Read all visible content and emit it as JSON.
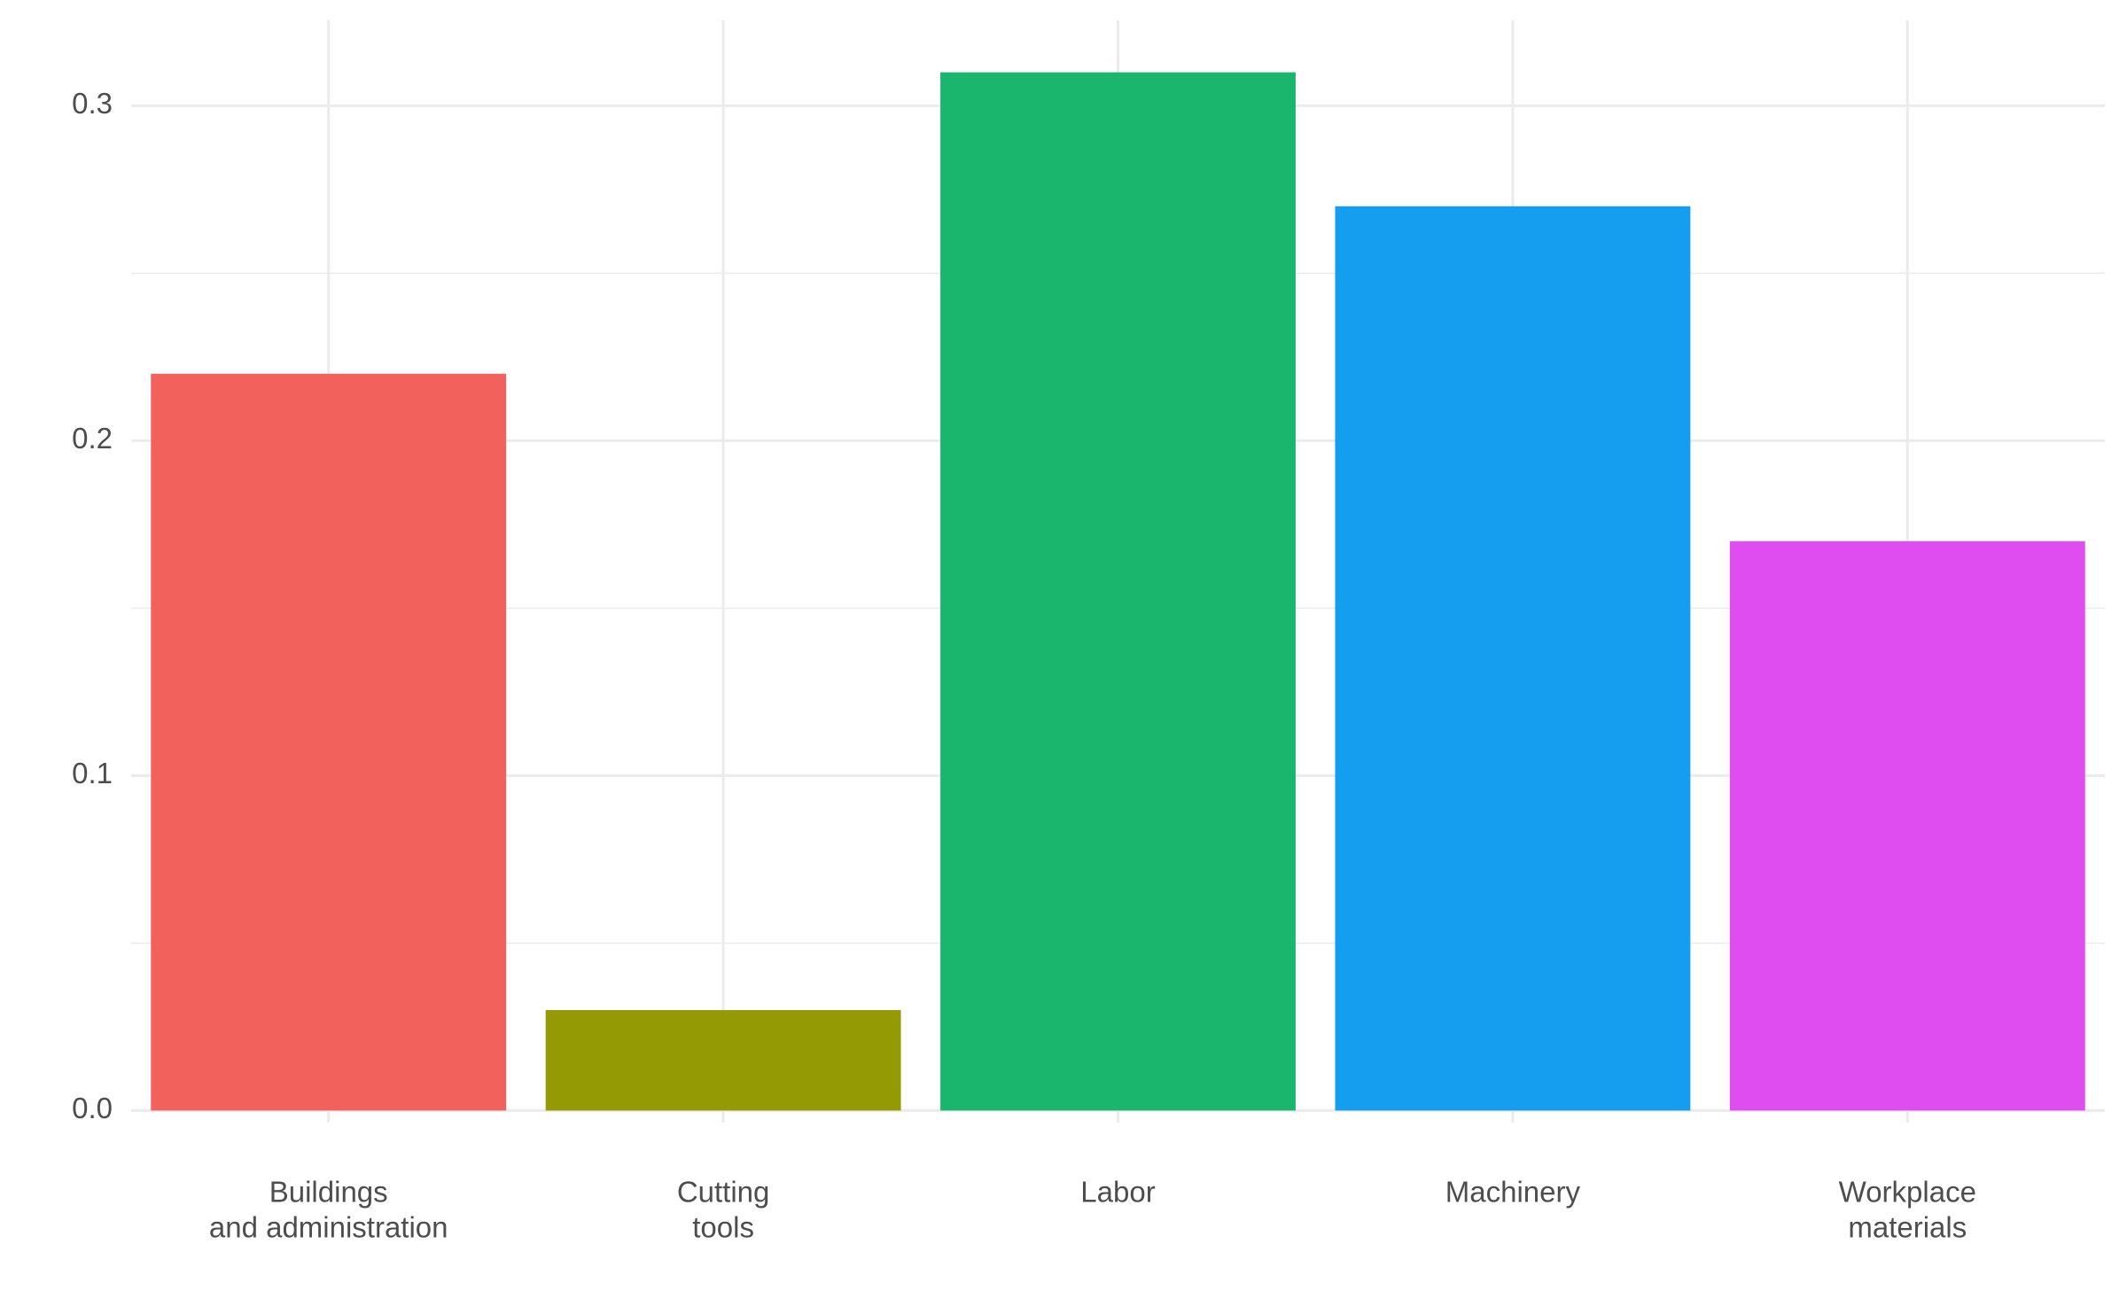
{
  "chart_data": {
    "type": "bar",
    "categories": [
      [
        "Buildings",
        "and administration"
      ],
      [
        "Cutting",
        "tools"
      ],
      [
        "Labor"
      ],
      [
        "Machinery"
      ],
      [
        "Workplace",
        "materials"
      ]
    ],
    "values": [
      0.22,
      0.03,
      0.31,
      0.27,
      0.17
    ],
    "colors": [
      "#f2615c",
      "#949a04",
      "#1bb66d",
      "#159ef0",
      "#df4cef"
    ],
    "ylim": [
      -0.0155,
      0.3255
    ],
    "yticks": [
      {
        "value": 0,
        "label": "0.0"
      },
      0.1,
      0.2,
      0.3
    ],
    "minor_yticks": [
      0.05,
      0.15,
      0.25
    ],
    "grid": true
  }
}
